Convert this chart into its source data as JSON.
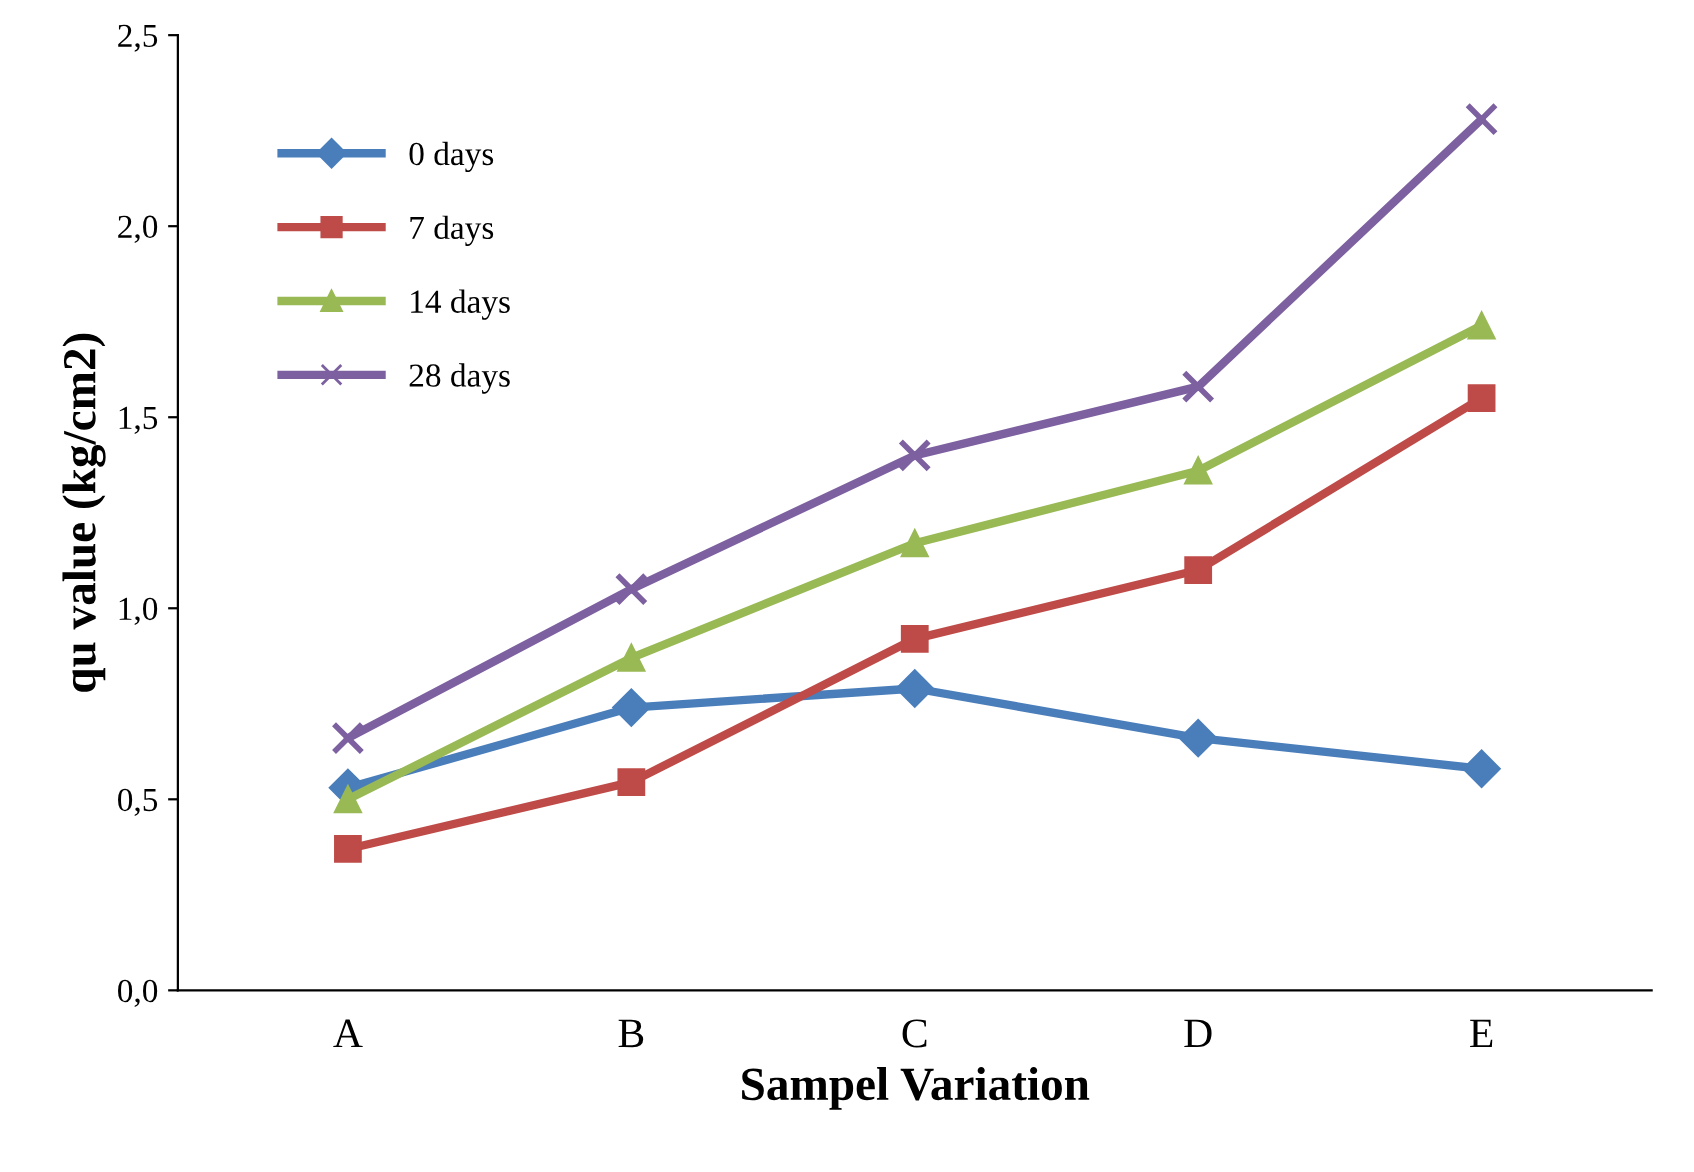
{
  "chart_data": {
    "type": "line",
    "xlabel": "Sampel Variation",
    "ylabel": "qu value (kg/cm2)",
    "categories": [
      "A",
      "B",
      "C",
      "D",
      "E"
    ],
    "series": [
      {
        "name": "0 days",
        "color": "#4a7ebb",
        "marker": "diamond",
        "values": [
          0.53,
          0.74,
          0.79,
          0.66,
          0.58
        ]
      },
      {
        "name": "7 days",
        "color": "#be4b48",
        "marker": "square",
        "values": [
          0.37,
          0.545,
          0.92,
          1.1,
          1.55
        ]
      },
      {
        "name": "14 days",
        "color": "#98b954",
        "marker": "triangle",
        "values": [
          0.5,
          0.87,
          1.17,
          1.36,
          1.74
        ]
      },
      {
        "name": "28 days",
        "color": "#7d60a0",
        "marker": "cross",
        "values": [
          0.66,
          1.05,
          1.4,
          1.58,
          2.28
        ]
      }
    ],
    "ylim": [
      0,
      2.5
    ],
    "yticks": [
      {
        "value": 0,
        "label": "0,0"
      },
      {
        "value": 0.5,
        "label": "0,5"
      },
      {
        "value": 1.0,
        "label": "1,0"
      },
      {
        "value": 1.5,
        "label": "1,5"
      },
      {
        "value": 2.0,
        "label": "2,0"
      },
      {
        "value": 2.5,
        "label": "2,5"
      }
    ],
    "grid": false,
    "legend": "top left",
    "line_style": "solid"
  }
}
